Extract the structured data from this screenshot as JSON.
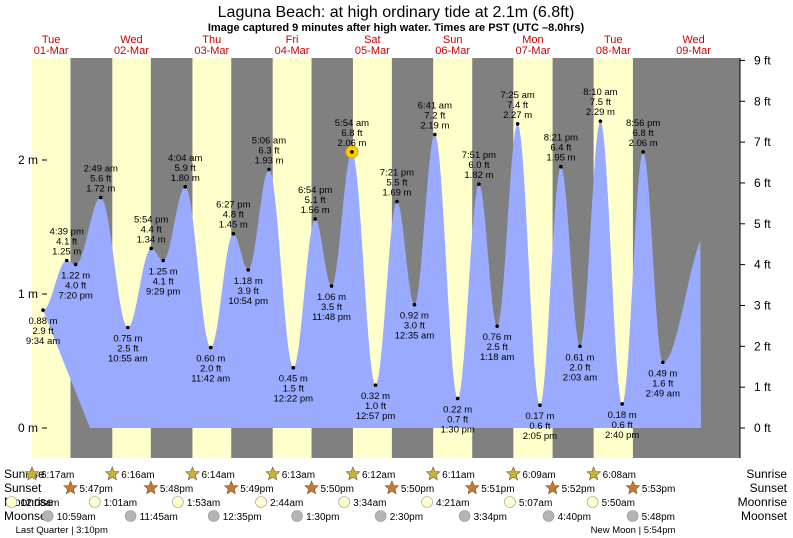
{
  "header": {
    "title": "Laguna Beach: at high  ordinary tide at 2.1m (6.8ft)",
    "subtitle": "Image captured 9 minutes after high water. Times are PST (UTC –8.0hrs)"
  },
  "colors": {
    "night": "#808080",
    "day": "#ffffcc",
    "water": "#99aaff",
    "day_label": "#cc0000",
    "sun_star": "#c8b43c",
    "sunset_star": "#c87830",
    "moon_circle": "#ffffcc",
    "moonset_circle": "#b4b4b4",
    "current_marker": "#ffcc00"
  },
  "chart_data": {
    "type": "area",
    "title": "Laguna Beach: at high  ordinary tide at 2.1m (6.8ft)",
    "y_left_unit": "m",
    "y_right_unit": "ft",
    "y_left_ticks": [
      "0 m",
      "1 m",
      "2 m"
    ],
    "y_right_ticks": [
      "0 ft",
      "1 ft",
      "2 ft",
      "3 ft",
      "4 ft",
      "5 ft",
      "6 ft",
      "7 ft",
      "8 ft",
      "9 ft"
    ],
    "ylim_m": [
      -0.1,
      2.82
    ],
    "grid": false,
    "days": [
      {
        "dow": "Tue",
        "date": "01-Mar"
      },
      {
        "dow": "Wed",
        "date": "02-Mar"
      },
      {
        "dow": "Thu",
        "date": "03-Mar"
      },
      {
        "dow": "Fri",
        "date": "04-Mar"
      },
      {
        "dow": "Sat",
        "date": "05-Mar"
      },
      {
        "dow": "Sun",
        "date": "06-Mar"
      },
      {
        "dow": "Mon",
        "date": "07-Mar"
      },
      {
        "dow": "Tue",
        "date": "08-Mar"
      },
      {
        "dow": "Wed",
        "date": "09-Mar"
      }
    ],
    "extremes": [
      {
        "type": "low",
        "day": 0,
        "time": "9:34 am",
        "m": "0.88 m",
        "ft": "2.9 ft",
        "h": 0.88,
        "t": 9.57
      },
      {
        "type": "high",
        "day": 0,
        "time": "4:39 pm",
        "m": "1.25 m",
        "ft": "4.1 ft",
        "h": 1.25,
        "t": 16.65
      },
      {
        "type": "low",
        "day": 0,
        "time": "7:20 pm",
        "m": "1.22 m",
        "ft": "4.0 ft",
        "h": 1.22,
        "t": 19.33
      },
      {
        "type": "high",
        "day": 1,
        "time": "2:49 am",
        "m": "1.72 m",
        "ft": "5.6 ft",
        "h": 1.72,
        "t": 2.82
      },
      {
        "type": "low",
        "day": 1,
        "time": "10:55 am",
        "m": "0.75 m",
        "ft": "2.5 ft",
        "h": 0.75,
        "t": 10.92
      },
      {
        "type": "high",
        "day": 1,
        "time": "5:54 pm",
        "m": "1.34 m",
        "ft": "4.4 ft",
        "h": 1.34,
        "t": 17.9
      },
      {
        "type": "low",
        "day": 1,
        "time": "9:29 pm",
        "m": "1.25 m",
        "ft": "4.1 ft",
        "h": 1.25,
        "t": 21.48
      },
      {
        "type": "high",
        "day": 2,
        "time": "4:04 am",
        "m": "1.80 m",
        "ft": "5.9 ft",
        "h": 1.8,
        "t": 4.07
      },
      {
        "type": "low",
        "day": 2,
        "time": "11:42 am",
        "m": "0.60 m",
        "ft": "2.0 ft",
        "h": 0.6,
        "t": 11.7
      },
      {
        "type": "high",
        "day": 2,
        "time": "6:27 pm",
        "m": "1.45 m",
        "ft": "4.8 ft",
        "h": 1.45,
        "t": 18.45
      },
      {
        "type": "low",
        "day": 2,
        "time": "10:54 pm",
        "m": "1.18 m",
        "ft": "3.9 ft",
        "h": 1.18,
        "t": 22.9
      },
      {
        "type": "high",
        "day": 3,
        "time": "5:06 am",
        "m": "1.93 m",
        "ft": "6.3 ft",
        "h": 1.93,
        "t": 5.1
      },
      {
        "type": "low",
        "day": 3,
        "time": "12:22 pm",
        "m": "0.45 m",
        "ft": "1.5 ft",
        "h": 0.45,
        "t": 12.37
      },
      {
        "type": "high",
        "day": 3,
        "time": "6:54 pm",
        "m": "1.56 m",
        "ft": "5.1 ft",
        "h": 1.56,
        "t": 18.9
      },
      {
        "type": "low",
        "day": 3,
        "time": "11:48 pm",
        "m": "1.06 m",
        "ft": "3.5 ft",
        "h": 1.06,
        "t": 23.8
      },
      {
        "type": "high",
        "day": 4,
        "time": "5:54 am",
        "m": "2.06 m",
        "ft": "6.8 ft",
        "h": 2.06,
        "t": 5.9,
        "current": true
      },
      {
        "type": "low",
        "day": 4,
        "time": "12:57 pm",
        "m": "0.32 m",
        "ft": "1.0 ft",
        "h": 0.32,
        "t": 12.95
      },
      {
        "type": "high",
        "day": 4,
        "time": "7:21 pm",
        "m": "1.69 m",
        "ft": "5.5 ft",
        "h": 1.69,
        "t": 19.35
      },
      {
        "type": "low",
        "day": 5,
        "time": "12:35 am",
        "m": "0.92 m",
        "ft": "3.0 ft",
        "h": 0.92,
        "t": 0.58
      },
      {
        "type": "high",
        "day": 5,
        "time": "6:41 am",
        "m": "2.19 m",
        "ft": "7.2 ft",
        "h": 2.19,
        "t": 6.68
      },
      {
        "type": "low",
        "day": 5,
        "time": "1:30 pm",
        "m": "0.22 m",
        "ft": "0.7 ft",
        "h": 0.22,
        "t": 13.5
      },
      {
        "type": "high",
        "day": 5,
        "time": "7:51 pm",
        "m": "1.82 m",
        "ft": "6.0 ft",
        "h": 1.82,
        "t": 19.85
      },
      {
        "type": "low",
        "day": 6,
        "time": "1:18 am",
        "m": "0.76 m",
        "ft": "2.5 ft",
        "h": 0.76,
        "t": 1.3
      },
      {
        "type": "high",
        "day": 6,
        "time": "7:25 am",
        "m": "2.27 m",
        "ft": "7.4 ft",
        "h": 2.27,
        "t": 7.42
      },
      {
        "type": "low",
        "day": 6,
        "time": "2:05 pm",
        "m": "0.17 m",
        "ft": "0.6 ft",
        "h": 0.17,
        "t": 14.08
      },
      {
        "type": "high",
        "day": 6,
        "time": "8:21 pm",
        "m": "1.95 m",
        "ft": "6.4 ft",
        "h": 1.95,
        "t": 20.35
      },
      {
        "type": "low",
        "day": 7,
        "time": "2:03 am",
        "m": "0.61 m",
        "ft": "2.0 ft",
        "h": 0.61,
        "t": 2.05
      },
      {
        "type": "high",
        "day": 7,
        "time": "8:10 am",
        "m": "2.29 m",
        "ft": "7.5 ft",
        "h": 2.29,
        "t": 8.17
      },
      {
        "type": "low",
        "day": 7,
        "time": "2:40 pm",
        "m": "0.18 m",
        "ft": "0.6 ft",
        "h": 0.18,
        "t": 14.67
      },
      {
        "type": "high",
        "day": 7,
        "time": "8:56 pm",
        "m": "2.06 m",
        "ft": "6.8 ft",
        "h": 2.06,
        "t": 20.93
      },
      {
        "type": "low",
        "day": 8,
        "time": "2:49 am",
        "m": "0.49 m",
        "ft": "1.6 ft",
        "h": 0.49,
        "t": 2.82
      }
    ]
  },
  "events": {
    "labels": {
      "sunrise": "Sunrise",
      "sunset": "Sunset",
      "moonrise": "Moonrise",
      "moonset": "Moonset"
    },
    "sunrise": [
      {
        "day": 0,
        "time": "6:17am",
        "t": 6.28
      },
      {
        "day": 1,
        "time": "6:16am",
        "t": 6.27
      },
      {
        "day": 2,
        "time": "6:14am",
        "t": 6.23
      },
      {
        "day": 3,
        "time": "6:13am",
        "t": 6.22
      },
      {
        "day": 4,
        "time": "6:12am",
        "t": 6.2
      },
      {
        "day": 5,
        "time": "6:11am",
        "t": 6.18
      },
      {
        "day": 6,
        "time": "6:09am",
        "t": 6.15
      },
      {
        "day": 7,
        "time": "6:08am",
        "t": 6.13
      }
    ],
    "sunset": [
      {
        "day": 0,
        "time": "5:47pm",
        "t": 17.78
      },
      {
        "day": 1,
        "time": "5:48pm",
        "t": 17.8
      },
      {
        "day": 2,
        "time": "5:49pm",
        "t": 17.82
      },
      {
        "day": 3,
        "time": "5:50pm",
        "t": 17.83
      },
      {
        "day": 4,
        "time": "5:50pm",
        "t": 17.83
      },
      {
        "day": 5,
        "time": "5:51pm",
        "t": 17.85
      },
      {
        "day": 6,
        "time": "5:52pm",
        "t": 17.87
      },
      {
        "day": 7,
        "time": "5:53pm",
        "t": 17.88
      }
    ],
    "moonrise": [
      {
        "day": 0,
        "time": "12:08am",
        "t": 0.13
      },
      {
        "day": 1,
        "time": "1:01am",
        "t": 1.02
      },
      {
        "day": 2,
        "time": "1:53am",
        "t": 1.88
      },
      {
        "day": 3,
        "time": "2:44am",
        "t": 2.73
      },
      {
        "day": 4,
        "time": "3:34am",
        "t": 3.57
      },
      {
        "day": 5,
        "time": "4:21am",
        "t": 4.35
      },
      {
        "day": 6,
        "time": "5:07am",
        "t": 5.12
      },
      {
        "day": 7,
        "time": "5:50am",
        "t": 5.83
      }
    ],
    "moonset": [
      {
        "day": 0,
        "time": "10:59am",
        "t": 10.98
      },
      {
        "day": 1,
        "time": "11:45am",
        "t": 11.75
      },
      {
        "day": 2,
        "time": "12:35pm",
        "t": 12.58
      },
      {
        "day": 3,
        "time": "1:30pm",
        "t": 13.5
      },
      {
        "day": 4,
        "time": "2:30pm",
        "t": 14.5
      },
      {
        "day": 5,
        "time": "3:34pm",
        "t": 15.57
      },
      {
        "day": 6,
        "time": "4:40pm",
        "t": 16.67
      },
      {
        "day": 7,
        "time": "5:48pm",
        "t": 17.8
      }
    ],
    "moon_phases": [
      {
        "text": "Last Quarter | 3:10pm",
        "day": 0,
        "t": 15.17
      },
      {
        "text": "New Moon | 5:54pm",
        "day": 7,
        "t": 17.9
      }
    ]
  }
}
